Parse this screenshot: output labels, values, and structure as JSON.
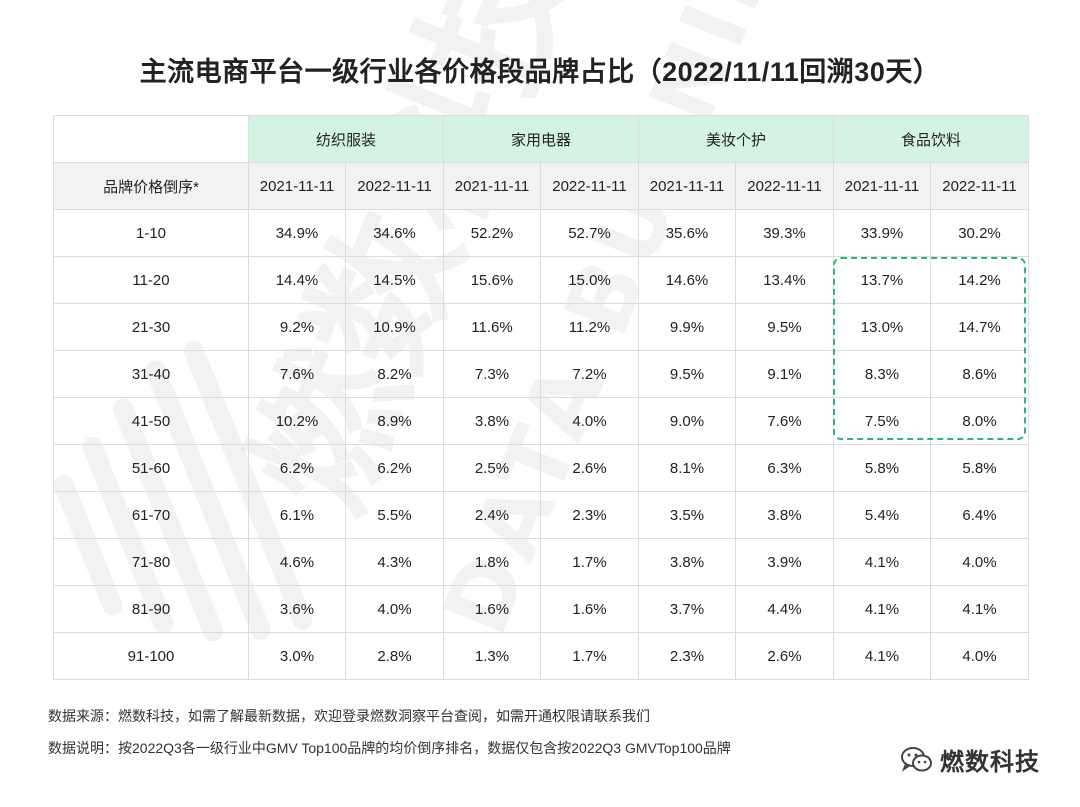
{
  "title": "主流电商平台一级行业各价格段品牌占比（2022/11/11回溯30天）",
  "chart_data": {
    "type": "table",
    "title": "主流电商平台一级行业各价格段品牌占比（2022/11/11回溯30天）",
    "row_header_label": "品牌价格倒序*",
    "groups": [
      "纺织服装",
      "家用电器",
      "美妆个护",
      "食品饮料"
    ],
    "periods": [
      "2021-11-11",
      "2022-11-11"
    ],
    "rows": [
      {
        "label": "1-10",
        "values": [
          "34.9%",
          "34.6%",
          "52.2%",
          "52.7%",
          "35.6%",
          "39.3%",
          "33.9%",
          "30.2%"
        ]
      },
      {
        "label": "11-20",
        "values": [
          "14.4%",
          "14.5%",
          "15.6%",
          "15.0%",
          "14.6%",
          "13.4%",
          "13.7%",
          "14.2%"
        ]
      },
      {
        "label": "21-30",
        "values": [
          "9.2%",
          "10.9%",
          "11.6%",
          "11.2%",
          "9.9%",
          "9.5%",
          "13.0%",
          "14.7%"
        ]
      },
      {
        "label": "31-40",
        "values": [
          "7.6%",
          "8.2%",
          "7.3%",
          "7.2%",
          "9.5%",
          "9.1%",
          "8.3%",
          "8.6%"
        ]
      },
      {
        "label": "41-50",
        "values": [
          "10.2%",
          "8.9%",
          "3.8%",
          "4.0%",
          "9.0%",
          "7.6%",
          "7.5%",
          "8.0%"
        ]
      },
      {
        "label": "51-60",
        "values": [
          "6.2%",
          "6.2%",
          "2.5%",
          "2.6%",
          "8.1%",
          "6.3%",
          "5.8%",
          "5.8%"
        ]
      },
      {
        "label": "61-70",
        "values": [
          "6.1%",
          "5.5%",
          "2.4%",
          "2.3%",
          "3.5%",
          "3.8%",
          "5.4%",
          "6.4%"
        ]
      },
      {
        "label": "71-80",
        "values": [
          "4.6%",
          "4.3%",
          "1.8%",
          "1.7%",
          "3.8%",
          "3.9%",
          "4.1%",
          "4.0%"
        ]
      },
      {
        "label": "81-90",
        "values": [
          "3.6%",
          "4.0%",
          "1.6%",
          "1.6%",
          "3.7%",
          "4.4%",
          "4.1%",
          "4.1%"
        ]
      },
      {
        "label": "91-100",
        "values": [
          "3.0%",
          "2.8%",
          "1.3%",
          "1.7%",
          "2.3%",
          "2.6%",
          "4.1%",
          "4.0%"
        ]
      }
    ]
  },
  "notes": {
    "source": "数据来源：燃数科技，如需了解最新数据，欢迎登录燃数洞察平台查阅，如需开通权限请联系我们",
    "explain": "数据说明：按2022Q3各一级行业中GMV Top100品牌的均价倒序排名，数据仅包含按2022Q3 GMVTop100品牌"
  },
  "watermark": {
    "cn": "燃数科技",
    "en": "DATA BURNING"
  },
  "logo": {
    "text": "燃数科技",
    "icon": "wechat-icon"
  },
  "colors": {
    "header_green": "#d4f3e2",
    "highlight": "#2bb673",
    "subheader_gray": "#f2f2f2",
    "grid": "#dcdcdc"
  }
}
